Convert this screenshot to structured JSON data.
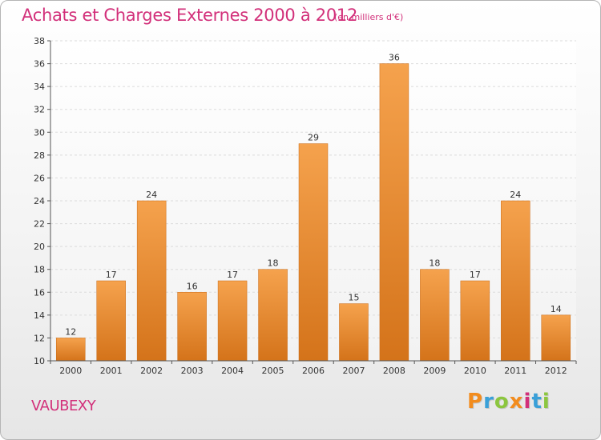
{
  "header": {
    "title": "Achats et Charges Externes 2000 à 2012",
    "subtitle": "(en milliers d'€)"
  },
  "footer": {
    "commune": "VAUBEXY",
    "logo_text": "Proxiti",
    "logo_colors": [
      "#f28c1e",
      "#3aa0d8",
      "#8cc63f",
      "#f28c1e",
      "#d2307a",
      "#3aa0d8",
      "#8cc63f"
    ]
  },
  "chart_data": {
    "type": "bar",
    "categories": [
      "2000",
      "2001",
      "2002",
      "2003",
      "2004",
      "2005",
      "2006",
      "2007",
      "2008",
      "2009",
      "2010",
      "2011",
      "2012"
    ],
    "values": [
      12,
      17,
      24,
      16,
      17,
      18,
      29,
      15,
      36,
      18,
      17,
      24,
      14
    ],
    "title": "Achats et Charges Externes 2000 à 2012",
    "subtitle": "(en milliers d'€)",
    "ylim": [
      10,
      38
    ],
    "yticks": [
      10,
      12,
      14,
      16,
      18,
      20,
      22,
      24,
      26,
      28,
      30,
      32,
      34,
      36,
      38
    ],
    "grid": true,
    "bar_color": "#f0983f",
    "bar_color_dark": "#d4731a"
  }
}
